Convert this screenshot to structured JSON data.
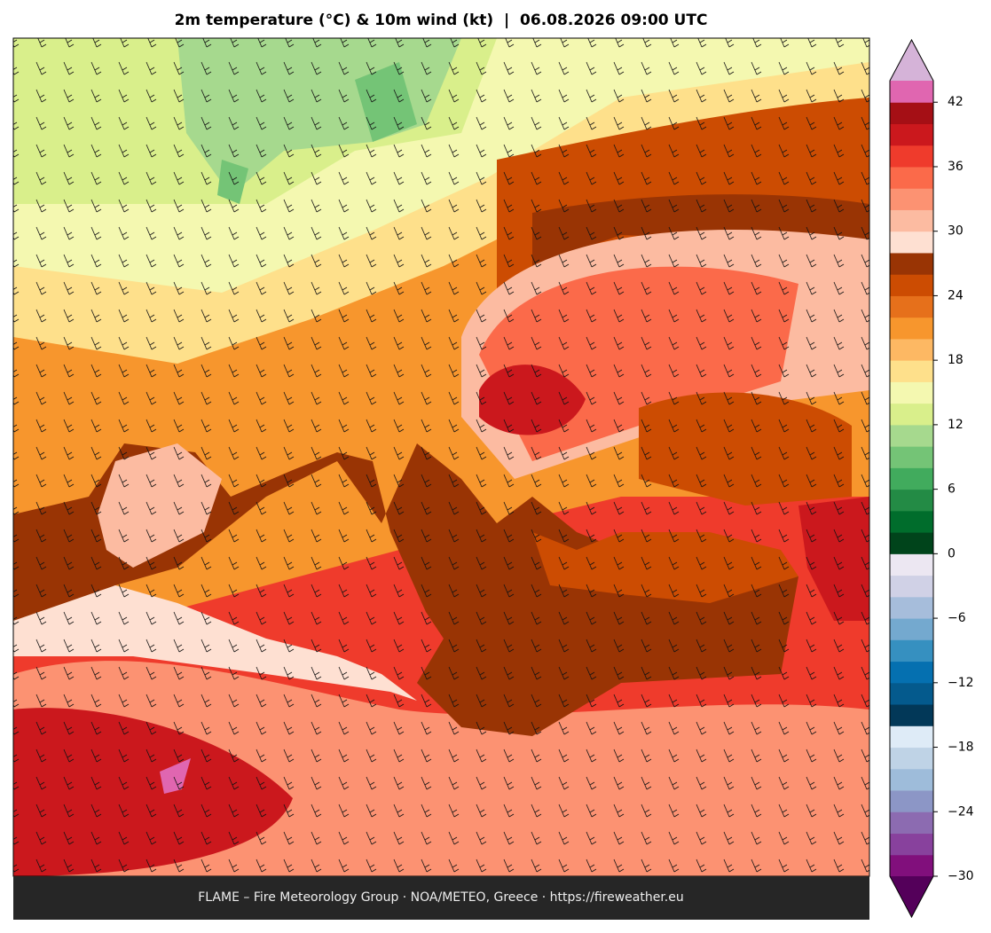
{
  "title": "2m temperature (°C) & 10m wind (kt)  |  06.08.2026 09:00 UTC",
  "footer": "FLAME – Fire Meteorology Group · NOA/METEO, Greece · https://fireweather.eu",
  "colorbar": {
    "lim": [
      -30,
      44
    ],
    "ticks": [
      {
        "value": -30,
        "label": "−30"
      },
      {
        "value": -24,
        "label": "−24"
      },
      {
        "value": -18,
        "label": "−18"
      },
      {
        "value": -12,
        "label": "−12"
      },
      {
        "value": -6,
        "label": "−6"
      },
      0,
      6,
      12,
      18,
      24,
      30,
      36,
      42
    ],
    "colors": [
      "#810f7c",
      "#88419d",
      "#8c6bb1",
      "#8c96c6",
      "#9ebcda",
      "#bfd3e6",
      "#deebf7",
      "#023858",
      "#045a8d",
      "#0570b0",
      "#3690c0",
      "#74a9cf",
      "#a6bddb",
      "#d0d1e6",
      "#ece7f2",
      "#00441b",
      "#006d2c",
      "#238b45",
      "#41ab5d",
      "#74c476",
      "#a6d98e",
      "#d9ef8b",
      "#f4f8b0",
      "#fee08b",
      "#fdb863",
      "#f7962d",
      "#e6701b",
      "#cc4c02",
      "#993404",
      "#fee0d2",
      "#fcbba1",
      "#fc9272",
      "#fb6a4a",
      "#ef3b2c",
      "#cb181d",
      "#a50f15",
      "#e066b0"
    ],
    "extend_colors": [
      "#54005a",
      "#d5b3d8"
    ]
  }
}
